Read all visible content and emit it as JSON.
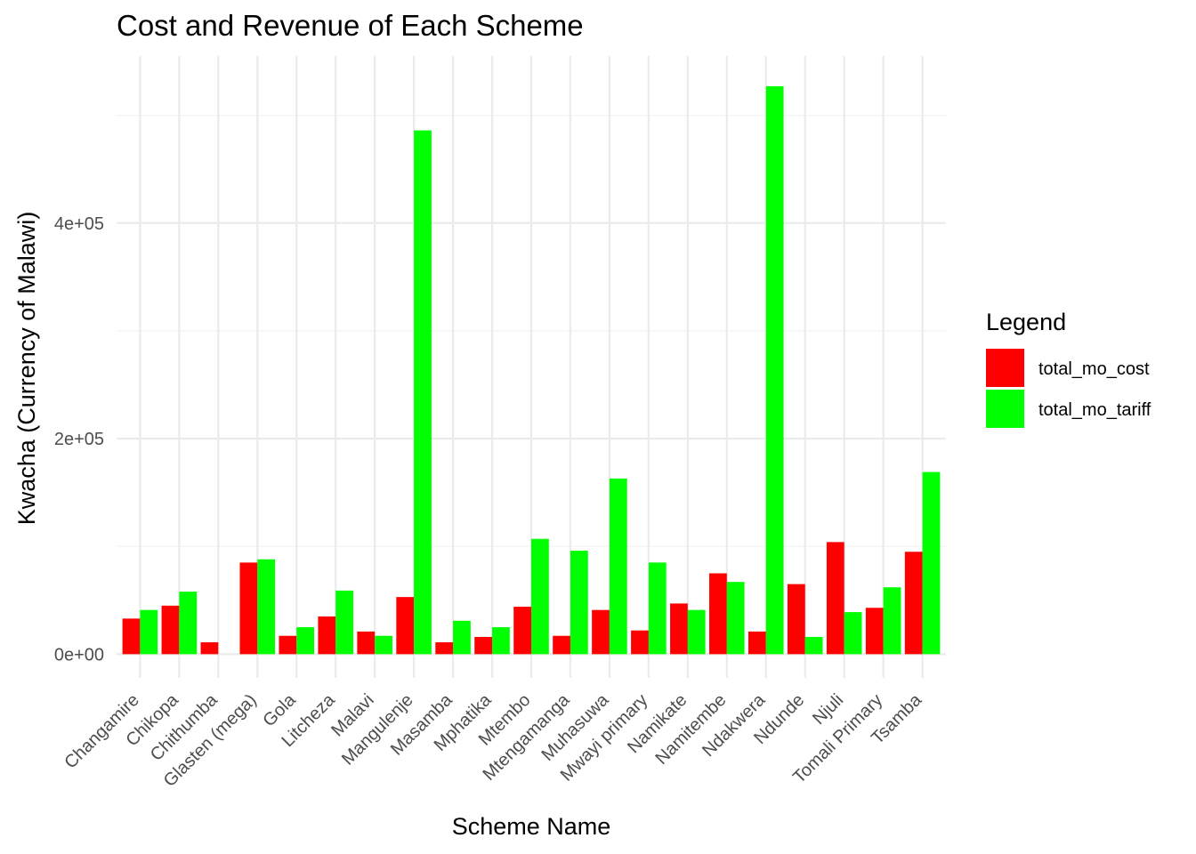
{
  "chart_data": {
    "type": "bar",
    "title": "Cost and Revenue of Each Scheme",
    "xlabel": "Scheme Name",
    "ylabel": "Kwacha (Currency of Malawi)",
    "categories": [
      "Changamire",
      "Chikopa",
      "Chithumba",
      "Glasten (mega)",
      "Gola",
      "Litcheza",
      "Malavi",
      "Mangulenje",
      "Masamba",
      "Mphatika",
      "Mtembo",
      "Mtengamanga",
      "Muhasuwa",
      "Mwayi primary",
      "Namikate",
      "Namitembe",
      "Ndakwera",
      "Ndunde",
      "Njuli",
      "Tomali Primary",
      "Tsamba"
    ],
    "series": [
      {
        "name": "total_mo_cost",
        "color": "#ff0000",
        "values": [
          33000,
          45000,
          11000,
          85000,
          17000,
          35000,
          21000,
          53000,
          11000,
          16000,
          44000,
          17000,
          41000,
          22000,
          47000,
          75000,
          21000,
          65000,
          104000,
          43000,
          95000
        ]
      },
      {
        "name": "total_mo_tariff",
        "color": "#00ff00",
        "values": [
          41000,
          58000,
          0,
          88000,
          25000,
          59000,
          17000,
          486000,
          31000,
          25000,
          107000,
          96000,
          163000,
          85000,
          41000,
          67000,
          527000,
          16000,
          39000,
          62000,
          169000
        ]
      }
    ],
    "y_ticks": [
      0,
      200000,
      400000
    ],
    "y_tick_labels": [
      "0e+00",
      "2e+05",
      "4e+05"
    ],
    "ylim": [
      -22000,
      555000
    ],
    "grid": true,
    "legend": {
      "title": "Legend",
      "position": "right"
    }
  }
}
